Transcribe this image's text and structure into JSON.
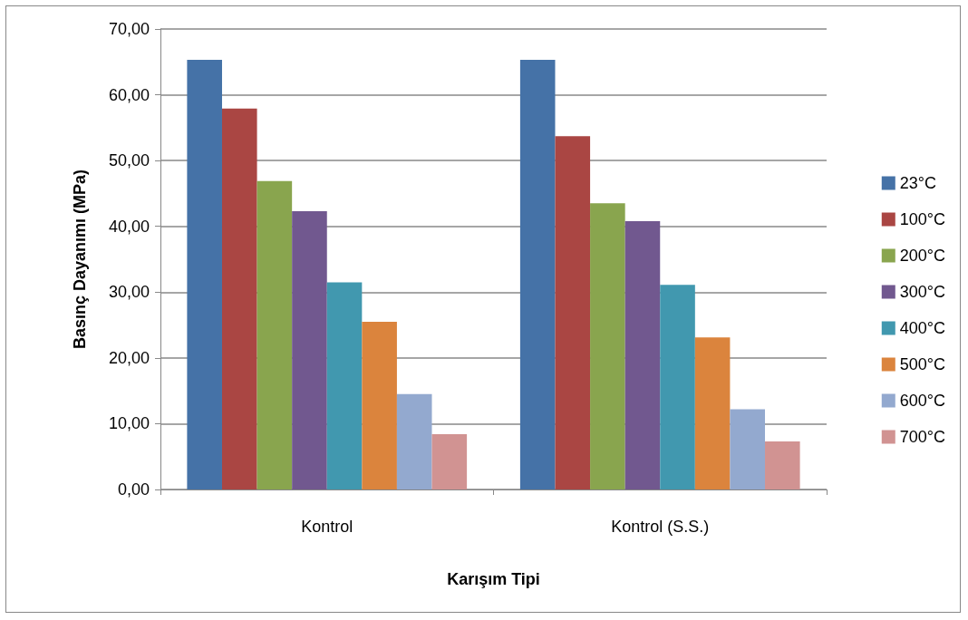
{
  "chart_data": {
    "type": "bar",
    "xlabel": "Karışım Tipi",
    "ylabel": "Basınç Dayanımı (MPa)",
    "categories": [
      "Kontrol",
      "Kontrol (S.S.)"
    ],
    "series": [
      {
        "name": "23°C",
        "color": "#4572a7",
        "values": [
          65.3,
          65.3
        ]
      },
      {
        "name": "100°C",
        "color": "#aa4643",
        "values": [
          57.9,
          53.7
        ]
      },
      {
        "name": "200°C",
        "color": "#89a54e",
        "values": [
          46.9,
          43.5
        ]
      },
      {
        "name": "300°C",
        "color": "#71588f",
        "values": [
          42.3,
          40.8
        ]
      },
      {
        "name": "400°C",
        "color": "#4198af",
        "values": [
          31.5,
          31.1
        ]
      },
      {
        "name": "500°C",
        "color": "#db843d",
        "values": [
          25.5,
          23.1
        ]
      },
      {
        "name": "600°C",
        "color": "#93a9cf",
        "values": [
          14.5,
          12.2
        ]
      },
      {
        "name": "700°C",
        "color": "#d19392",
        "values": [
          8.4,
          7.3
        ]
      }
    ],
    "ylim": [
      0,
      70
    ],
    "yticks": [
      {
        "value": 0,
        "label": "0,00"
      },
      {
        "value": 10,
        "label": "10,00"
      },
      {
        "value": 20,
        "label": "20,00"
      },
      {
        "value": 30,
        "label": "30,00"
      },
      {
        "value": 40,
        "label": "40,00"
      },
      {
        "value": 50,
        "label": "50,00"
      },
      {
        "value": 60,
        "label": "60,00"
      },
      {
        "value": 70,
        "label": "70,00"
      }
    ],
    "grid": "y",
    "legend": "right"
  }
}
